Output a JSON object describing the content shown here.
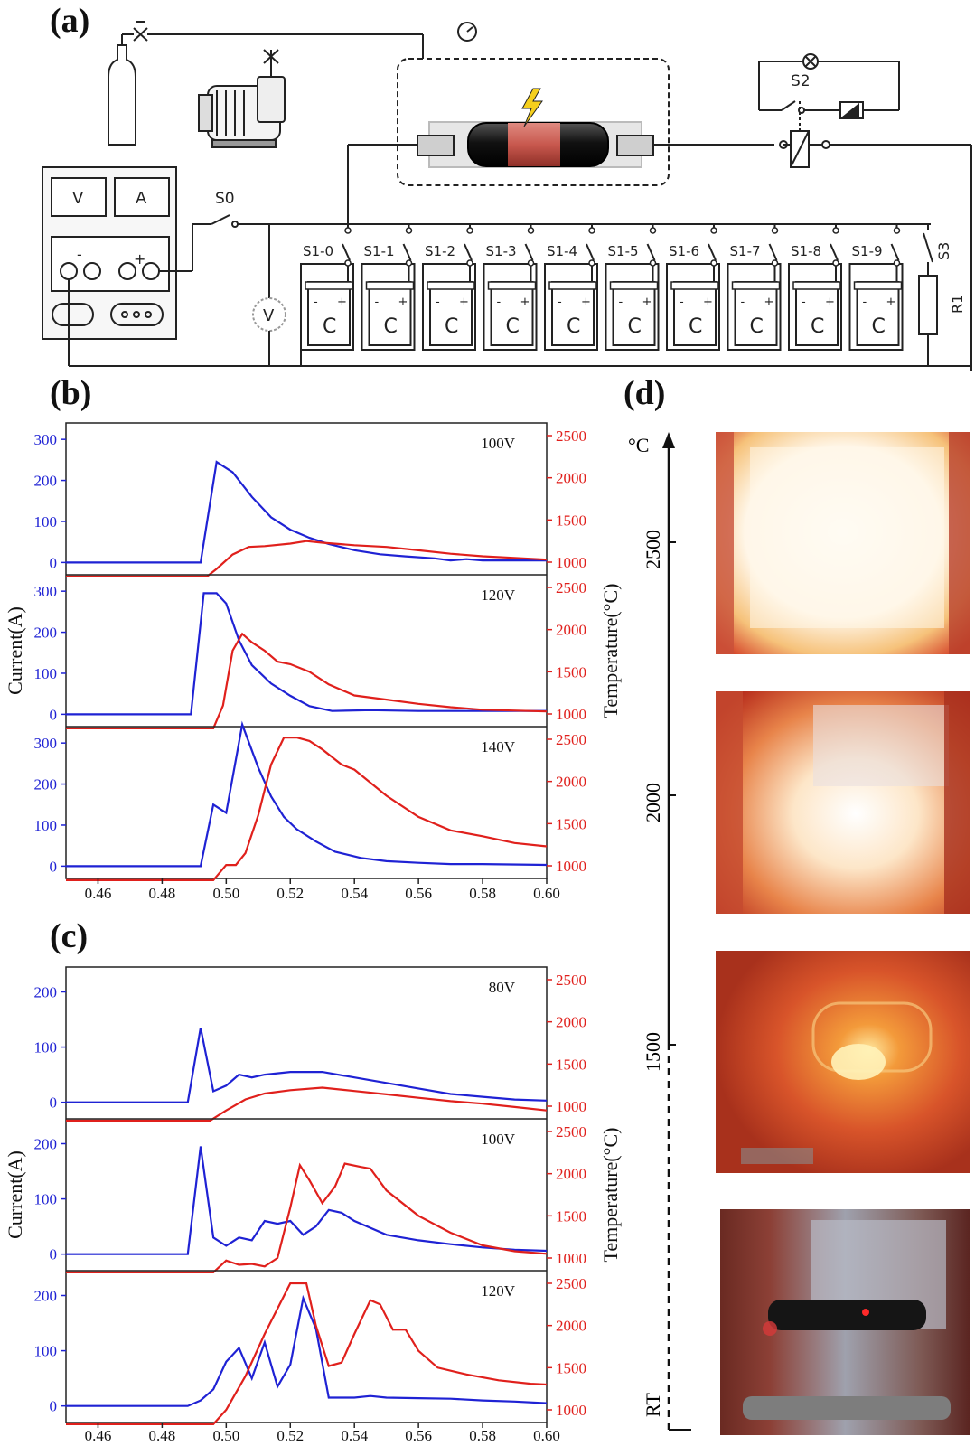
{
  "colors": {
    "current": "#1f22d4",
    "temperature": "#e0201c",
    "frame": "#222222"
  },
  "panels": {
    "a": "(a)",
    "b": "(b)",
    "c": "(c)",
    "d": "(d)"
  },
  "schematic": {
    "meter_v": "V",
    "meter_a": "A",
    "terminal_neg": "-",
    "terminal_pos": "+",
    "voltmeter": "V",
    "switch_s0": "S0",
    "switch_s2": "S2",
    "switch_s3": "S3",
    "resistor": "R1",
    "capacitor_label": "C",
    "cap_neg": "-",
    "cap_pos": "+",
    "switch_labels": [
      "S1-0",
      "S1-1",
      "S1-2",
      "S1-3",
      "S1-4",
      "S1-5",
      "S1-6",
      "S1-7",
      "S1-8",
      "S1-9"
    ],
    "icons": [
      "gas-cylinder-icon",
      "valve-icon",
      "vacuum-pump-icon",
      "pressure-gauge-icon",
      "lightning-icon",
      "lamp-icon",
      "relay-icon",
      "battery-icon"
    ]
  },
  "chart_data": [
    {
      "id": "b",
      "type": "line",
      "xlim": [
        0.45,
        0.6
      ],
      "xticks": [
        "0.46",
        "0.48",
        "0.50",
        "0.52",
        "0.54",
        "0.56",
        "0.58",
        "0.60"
      ],
      "ylabel": "Current(A)",
      "ylabel2": "Temperature(°C)",
      "subplots": [
        {
          "label": "100V",
          "ylim": [
            -30,
            340
          ],
          "yticks": [
            0,
            100,
            200,
            300
          ],
          "y2lim": [
            850,
            2650
          ],
          "y2ticks": [
            1000,
            1500,
            2000,
            2500
          ],
          "current": [
            [
              0.45,
              0
            ],
            [
              0.492,
              0
            ],
            [
              0.497,
              245
            ],
            [
              0.502,
              220
            ],
            [
              0.508,
              160
            ],
            [
              0.514,
              110
            ],
            [
              0.52,
              80
            ],
            [
              0.526,
              60
            ],
            [
              0.532,
              45
            ],
            [
              0.54,
              30
            ],
            [
              0.548,
              20
            ],
            [
              0.556,
              15
            ],
            [
              0.565,
              10
            ],
            [
              0.57,
              5
            ],
            [
              0.575,
              8
            ],
            [
              0.58,
              5
            ],
            [
              0.59,
              5
            ],
            [
              0.6,
              5
            ]
          ],
          "temperature": [
            [
              0.45,
              830
            ],
            [
              0.494,
              830
            ],
            [
              0.497,
              920
            ],
            [
              0.502,
              1090
            ],
            [
              0.507,
              1180
            ],
            [
              0.512,
              1190
            ],
            [
              0.52,
              1220
            ],
            [
              0.525,
              1250
            ],
            [
              0.53,
              1230
            ],
            [
              0.54,
              1200
            ],
            [
              0.55,
              1180
            ],
            [
              0.56,
              1140
            ],
            [
              0.57,
              1100
            ],
            [
              0.58,
              1070
            ],
            [
              0.59,
              1050
            ],
            [
              0.6,
              1030
            ]
          ]
        },
        {
          "label": "120V",
          "ylim": [
            -30,
            340
          ],
          "yticks": [
            0,
            100,
            200,
            300
          ],
          "y2lim": [
            850,
            2650
          ],
          "y2ticks": [
            1000,
            1500,
            2000,
            2500
          ],
          "current": [
            [
              0.45,
              0
            ],
            [
              0.489,
              0
            ],
            [
              0.493,
              295
            ],
            [
              0.497,
              295
            ],
            [
              0.5,
              270
            ],
            [
              0.504,
              180
            ],
            [
              0.508,
              120
            ],
            [
              0.514,
              75
            ],
            [
              0.52,
              45
            ],
            [
              0.526,
              20
            ],
            [
              0.533,
              8
            ],
            [
              0.545,
              10
            ],
            [
              0.56,
              8
            ],
            [
              0.6,
              8
            ]
          ],
          "temperature": [
            [
              0.45,
              830
            ],
            [
              0.496,
              830
            ],
            [
              0.499,
              1100
            ],
            [
              0.502,
              1750
            ],
            [
              0.505,
              1950
            ],
            [
              0.508,
              1850
            ],
            [
              0.512,
              1750
            ],
            [
              0.516,
              1620
            ],
            [
              0.52,
              1590
            ],
            [
              0.526,
              1500
            ],
            [
              0.532,
              1350
            ],
            [
              0.54,
              1220
            ],
            [
              0.55,
              1170
            ],
            [
              0.56,
              1120
            ],
            [
              0.57,
              1080
            ],
            [
              0.58,
              1050
            ],
            [
              0.6,
              1030
            ]
          ]
        },
        {
          "label": "140V",
          "ylim": [
            -30,
            340
          ],
          "yticks": [
            0,
            100,
            200,
            300
          ],
          "y2lim": [
            850,
            2650
          ],
          "y2ticks": [
            1000,
            1500,
            2000,
            2500
          ],
          "current": [
            [
              0.45,
              0
            ],
            [
              0.492,
              0
            ],
            [
              0.496,
              150
            ],
            [
              0.5,
              130
            ],
            [
              0.505,
              345
            ],
            [
              0.51,
              240
            ],
            [
              0.514,
              170
            ],
            [
              0.518,
              120
            ],
            [
              0.522,
              90
            ],
            [
              0.528,
              60
            ],
            [
              0.534,
              35
            ],
            [
              0.542,
              20
            ],
            [
              0.55,
              12
            ],
            [
              0.56,
              8
            ],
            [
              0.57,
              5
            ],
            [
              0.58,
              5
            ],
            [
              0.6,
              3
            ]
          ],
          "temperature": [
            [
              0.45,
              830
            ],
            [
              0.496,
              830
            ],
            [
              0.5,
              1010
            ],
            [
              0.503,
              1010
            ],
            [
              0.506,
              1150
            ],
            [
              0.51,
              1600
            ],
            [
              0.514,
              2200
            ],
            [
              0.518,
              2520
            ],
            [
              0.522,
              2520
            ],
            [
              0.526,
              2480
            ],
            [
              0.53,
              2380
            ],
            [
              0.536,
              2200
            ],
            [
              0.54,
              2140
            ],
            [
              0.55,
              1830
            ],
            [
              0.56,
              1580
            ],
            [
              0.57,
              1420
            ],
            [
              0.58,
              1350
            ],
            [
              0.59,
              1270
            ],
            [
              0.6,
              1230
            ]
          ]
        }
      ]
    },
    {
      "id": "c",
      "type": "line",
      "xlim": [
        0.45,
        0.6
      ],
      "xticks": [
        "0.46",
        "0.48",
        "0.50",
        "0.52",
        "0.54",
        "0.56",
        "0.58",
        "0.60"
      ],
      "ylabel": "Current(A)",
      "ylabel2": "Temperature(°C)",
      "subplots": [
        {
          "label": "80V",
          "ylim": [
            -30,
            245
          ],
          "yticks": [
            0,
            100,
            200
          ],
          "y2lim": [
            850,
            2650
          ],
          "y2ticks": [
            1000,
            1500,
            2000,
            2500
          ],
          "current": [
            [
              0.45,
              0
            ],
            [
              0.488,
              0
            ],
            [
              0.492,
              135
            ],
            [
              0.496,
              20
            ],
            [
              0.5,
              30
            ],
            [
              0.504,
              50
            ],
            [
              0.508,
              45
            ],
            [
              0.512,
              50
            ],
            [
              0.52,
              55
            ],
            [
              0.53,
              55
            ],
            [
              0.54,
              45
            ],
            [
              0.55,
              35
            ],
            [
              0.56,
              25
            ],
            [
              0.57,
              15
            ],
            [
              0.58,
              10
            ],
            [
              0.59,
              5
            ],
            [
              0.6,
              3
            ]
          ],
          "temperature": [
            [
              0.45,
              830
            ],
            [
              0.495,
              830
            ],
            [
              0.5,
              950
            ],
            [
              0.506,
              1080
            ],
            [
              0.512,
              1150
            ],
            [
              0.52,
              1190
            ],
            [
              0.53,
              1220
            ],
            [
              0.54,
              1180
            ],
            [
              0.55,
              1140
            ],
            [
              0.56,
              1100
            ],
            [
              0.57,
              1060
            ],
            [
              0.58,
              1030
            ],
            [
              0.59,
              990
            ],
            [
              0.6,
              950
            ]
          ]
        },
        {
          "label": "100V",
          "ylim": [
            -30,
            245
          ],
          "yticks": [
            0,
            100,
            200
          ],
          "y2lim": [
            850,
            2650
          ],
          "y2ticks": [
            1000,
            1500,
            2000,
            2500
          ],
          "current": [
            [
              0.45,
              0
            ],
            [
              0.488,
              0
            ],
            [
              0.492,
              195
            ],
            [
              0.496,
              30
            ],
            [
              0.5,
              15
            ],
            [
              0.504,
              30
            ],
            [
              0.508,
              25
            ],
            [
              0.512,
              60
            ],
            [
              0.516,
              55
            ],
            [
              0.52,
              60
            ],
            [
              0.524,
              35
            ],
            [
              0.528,
              50
            ],
            [
              0.532,
              80
            ],
            [
              0.536,
              75
            ],
            [
              0.54,
              60
            ],
            [
              0.55,
              35
            ],
            [
              0.56,
              25
            ],
            [
              0.57,
              18
            ],
            [
              0.58,
              12
            ],
            [
              0.59,
              8
            ],
            [
              0.6,
              6
            ]
          ],
          "temperature": [
            [
              0.45,
              830
            ],
            [
              0.496,
              830
            ],
            [
              0.5,
              970
            ],
            [
              0.504,
              920
            ],
            [
              0.508,
              930
            ],
            [
              0.512,
              900
            ],
            [
              0.516,
              1000
            ],
            [
              0.52,
              1600
            ],
            [
              0.523,
              2100
            ],
            [
              0.526,
              1920
            ],
            [
              0.53,
              1650
            ],
            [
              0.534,
              1850
            ],
            [
              0.537,
              2120
            ],
            [
              0.542,
              2080
            ],
            [
              0.545,
              2060
            ],
            [
              0.55,
              1800
            ],
            [
              0.56,
              1500
            ],
            [
              0.57,
              1300
            ],
            [
              0.58,
              1150
            ],
            [
              0.59,
              1080
            ],
            [
              0.6,
              1050
            ]
          ]
        },
        {
          "label": "120V",
          "ylim": [
            -30,
            245
          ],
          "yticks": [
            0,
            100,
            200
          ],
          "y2lim": [
            850,
            2650
          ],
          "y2ticks": [
            1000,
            1500,
            2000,
            2500
          ],
          "current": [
            [
              0.45,
              0
            ],
            [
              0.488,
              0
            ],
            [
              0.492,
              10
            ],
            [
              0.496,
              30
            ],
            [
              0.5,
              80
            ],
            [
              0.504,
              105
            ],
            [
              0.508,
              50
            ],
            [
              0.512,
              115
            ],
            [
              0.516,
              35
            ],
            [
              0.52,
              75
            ],
            [
              0.524,
              195
            ],
            [
              0.528,
              140
            ],
            [
              0.532,
              15
            ],
            [
              0.54,
              15
            ],
            [
              0.545,
              18
            ],
            [
              0.55,
              15
            ],
            [
              0.56,
              14
            ],
            [
              0.57,
              13
            ],
            [
              0.58,
              10
            ],
            [
              0.59,
              8
            ],
            [
              0.6,
              5
            ]
          ],
          "temperature": [
            [
              0.45,
              830
            ],
            [
              0.496,
              830
            ],
            [
              0.5,
              1000
            ],
            [
              0.506,
              1400
            ],
            [
              0.512,
              1900
            ],
            [
              0.52,
              2500
            ],
            [
              0.525,
              2500
            ],
            [
              0.528,
              2000
            ],
            [
              0.532,
              1520
            ],
            [
              0.536,
              1560
            ],
            [
              0.54,
              1900
            ],
            [
              0.545,
              2300
            ],
            [
              0.548,
              2250
            ],
            [
              0.552,
              1950
            ],
            [
              0.556,
              1950
            ],
            [
              0.56,
              1700
            ],
            [
              0.566,
              1500
            ],
            [
              0.575,
              1420
            ],
            [
              0.585,
              1350
            ],
            [
              0.595,
              1310
            ],
            [
              0.6,
              1300
            ]
          ]
        }
      ]
    }
  ],
  "thermo_axis": {
    "unit": "°C",
    "ticks": [
      "2500",
      "2000",
      "1500"
    ],
    "bottom": "RT"
  },
  "photos": [
    "photo-2500c",
    "photo-2000c",
    "photo-1500c",
    "photo-rt"
  ]
}
